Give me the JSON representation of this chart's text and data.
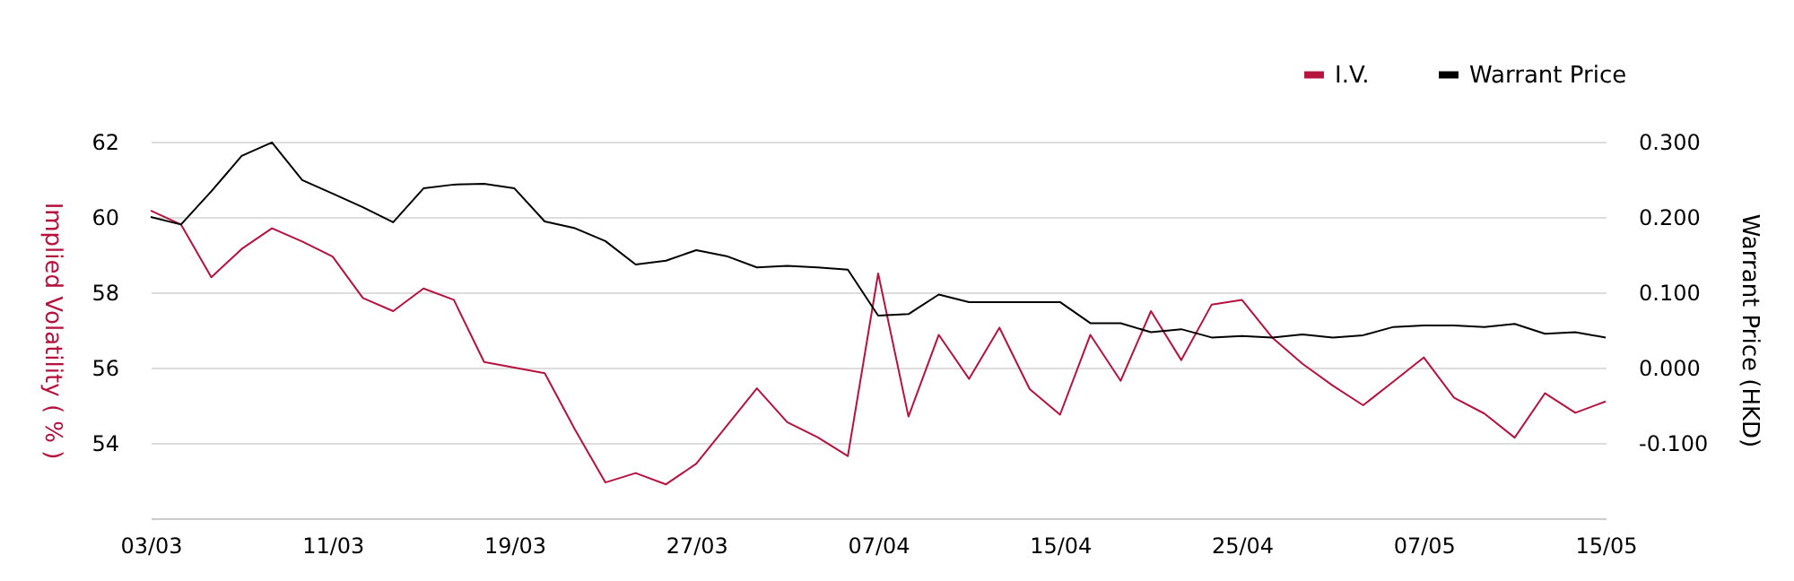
{
  "chart_data": {
    "type": "line",
    "ylabel": "Implied Volatility ( % )",
    "y2label": "Warrant Price (HKD)",
    "categories": [
      "03/03",
      null,
      null,
      null,
      null,
      null,
      "11/03",
      null,
      null,
      null,
      null,
      null,
      "19/03",
      null,
      null,
      null,
      null,
      null,
      "27/03",
      null,
      null,
      null,
      null,
      null,
      "07/04",
      null,
      null,
      null,
      null,
      null,
      "15/04",
      null,
      null,
      null,
      null,
      null,
      "25/04",
      null,
      null,
      null,
      null,
      null,
      "07/05",
      null,
      null,
      null,
      null,
      null,
      "15/05"
    ],
    "ylim": [
      52,
      62
    ],
    "yticks": [
      54,
      56,
      58,
      60,
      62
    ],
    "y2lim": [
      -0.2,
      0.3
    ],
    "y2ticks": [
      {
        "value": -0.1,
        "label": "-0.100"
      },
      {
        "value": 0,
        "label": "0.000"
      },
      {
        "value": 0.1,
        "label": "0.100"
      },
      {
        "value": 0.2,
        "label": "0.200"
      },
      {
        "value": 0.3,
        "label": "0.300"
      }
    ],
    "grid": "y",
    "legend": "top right",
    "line_style": "solid",
    "marker": "none",
    "series": [
      {
        "name": "I.V.",
        "color": "#b5123e",
        "values": [
          60.17,
          59.8,
          58.4,
          59.15,
          59.7,
          59.35,
          58.95,
          57.85,
          57.5,
          58.1,
          57.8,
          56.15,
          56.0,
          55.85,
          54.35,
          52.95,
          53.2,
          52.9,
          53.45,
          54.45,
          55.45,
          54.55,
          54.15,
          53.65,
          58.5,
          54.7,
          56.87,
          55.7,
          57.06,
          55.43,
          54.75,
          56.87,
          55.65,
          57.5,
          56.2,
          57.67,
          57.8,
          56.8,
          56.1,
          55.52,
          55.0,
          55.63,
          56.27,
          55.2,
          54.78,
          54.14,
          55.32,
          54.8,
          55.1
        ]
      },
      {
        "name": "Warrant Price",
        "color": "#000000",
        "axis": "y2",
        "values": [
          0.2,
          0.19,
          0.234,
          0.281,
          0.299,
          0.249,
          0.231,
          0.213,
          0.193,
          0.238,
          0.243,
          0.244,
          0.238,
          0.194,
          0.185,
          0.168,
          0.137,
          0.142,
          0.156,
          0.148,
          0.133,
          0.135,
          0.133,
          0.13,
          0.069,
          0.071,
          0.097,
          0.087,
          0.087,
          0.087,
          0.087,
          0.059,
          0.059,
          0.047,
          0.051,
          0.04,
          0.042,
          0.04,
          0.044,
          0.04,
          0.043,
          0.054,
          0.056,
          0.056,
          0.054,
          0.058,
          0.045,
          0.047,
          0.04
        ]
      }
    ]
  }
}
